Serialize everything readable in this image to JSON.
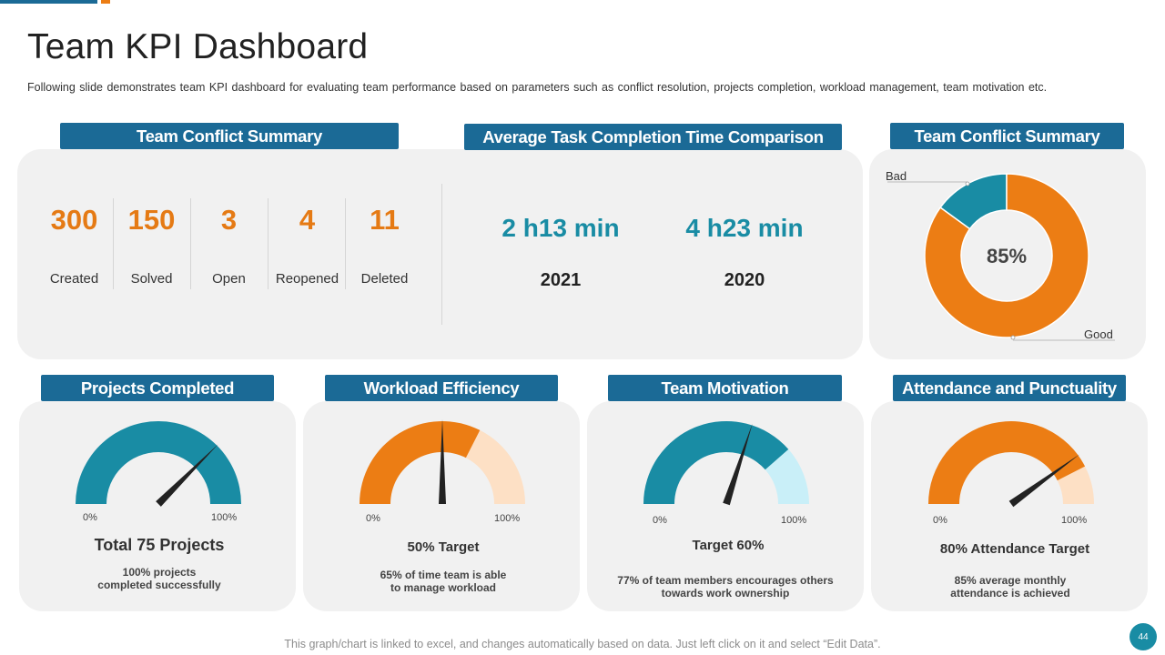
{
  "header": {
    "title": "Team KPI Dashboard",
    "subtitle": "Following slide demonstrates team KPI dashboard for evaluating team performance  based on parameters such as conflict resolution, projects completion, workload management, team motivation etc."
  },
  "colors": {
    "blue": "#1b6a96",
    "teal": "#198ca4",
    "orange": "#ec7d14",
    "card": "#f1f1f1"
  },
  "conflict_summary": {
    "label": "Team Conflict Summary",
    "stats": [
      {
        "value": "300",
        "label": "Created"
      },
      {
        "value": "150",
        "label": "Solved"
      },
      {
        "value": "3",
        "label": "Open"
      },
      {
        "value": "4",
        "label": "Reopened"
      },
      {
        "value": "11",
        "label": "Deleted"
      }
    ]
  },
  "task_time": {
    "label": "Average Task Completion Time Comparison",
    "items": [
      {
        "value": "2 h13 min",
        "year": "2021"
      },
      {
        "value": "4 h23 min",
        "year": "2020"
      }
    ]
  },
  "conflict_donut": {
    "label": "Team Conflict Summary",
    "center": "85%",
    "bad_label": "Bad",
    "good_label": "Good"
  },
  "gauges": [
    {
      "label": "Projects Completed",
      "min": "0%",
      "max": "100%",
      "title": "Total 75 Projects",
      "desc1": "100% projects",
      "desc2": "completed successfully"
    },
    {
      "label": "Workload Efficiency",
      "min": "0%",
      "max": "100%",
      "title": "50% Target",
      "desc1": "65% of time team is able",
      "desc2": "to manage workload"
    },
    {
      "label": "Team Motivation",
      "min": "0%",
      "max": "100%",
      "title": "Target 60%",
      "desc1": "77% of team members encourages others",
      "desc2": "towards work ownership"
    },
    {
      "label": "Attendance and Punctuality",
      "min": "0%",
      "max": "100%",
      "title": "80% Attendance Target",
      "desc1": "85% average monthly",
      "desc2": "attendance is achieved"
    }
  ],
  "chart_data": [
    {
      "type": "pie",
      "categories": [
        "Good",
        "Bad"
      ],
      "values": [
        85,
        15
      ]
    },
    {
      "type": "gauge",
      "min": 0,
      "max": 100,
      "filled": 100,
      "needle": 75
    },
    {
      "type": "gauge",
      "min": 0,
      "max": 100,
      "filled": 65,
      "needle": 50
    },
    {
      "type": "gauge",
      "min": 0,
      "max": 100,
      "filled": 77,
      "needle": 60
    },
    {
      "type": "gauge",
      "min": 0,
      "max": 100,
      "filled": 85,
      "needle": 80
    }
  ],
  "footer": {
    "note": "This graph/chart is linked to excel, and changes automatically based on data. Just left click on it and select “Edit Data”.",
    "page_number": "44"
  }
}
